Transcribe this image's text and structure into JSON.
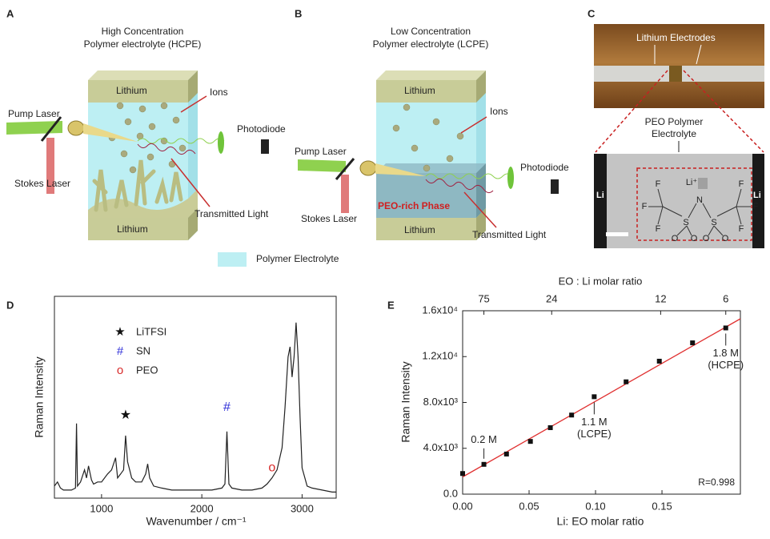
{
  "panels": {
    "A": {
      "label": "A",
      "title": [
        "High Concentration",
        "Polymer electrolyte (HCPE)"
      ],
      "top_electrode": "Lithium",
      "bottom_electrode": "Lithium",
      "ions": "Ions",
      "pump": "Pump Laser",
      "detector": "Photodiode",
      "stokes": "Stokes Laser",
      "transmitted": "Transmitted Light"
    },
    "B": {
      "label": "B",
      "title": [
        "Low Concentration",
        "Polymer electrolyte (LCPE)"
      ],
      "top_electrode": "Lithium",
      "bottom_electrode": "Lithium",
      "ions": "Ions",
      "pump": "Pump Laser",
      "detector": "Photodiode",
      "stokes": "Stokes Laser",
      "phase": "PEO-rich Phase",
      "transmitted": "Transmitted Light"
    },
    "C": {
      "label": "C",
      "electrodes": "Lithium Electrodes",
      "electrolyte": [
        "PEO Polymer",
        "Electrolyte"
      ],
      "left": "Li",
      "right": "Li",
      "atoms": [
        "F",
        "F",
        "F",
        "S",
        "O",
        "O",
        "N",
        "S",
        "O",
        "O",
        "F",
        "F",
        "F"
      ],
      "cation": "Li⁺"
    }
  },
  "legend": "Polymer Electrolyte",
  "chart_data": [
    {
      "type": "line",
      "label": "D",
      "xlabel": "Wavenumber / cm⁻¹",
      "ylabel": "Raman Intensity",
      "color": "#222222",
      "x": [
        530,
        560,
        590,
        620,
        660,
        700,
        740,
        750,
        760,
        790,
        830,
        850,
        870,
        900,
        920,
        960,
        1000,
        1060,
        1100,
        1140,
        1160,
        1190,
        1220,
        1240,
        1260,
        1280,
        1300,
        1340,
        1400,
        1440,
        1460,
        1480,
        1520,
        1600,
        1700,
        1800,
        1900,
        2000,
        2100,
        2200,
        2230,
        2250,
        2270,
        2300,
        2400,
        2500,
        2600,
        2650,
        2700,
        2750,
        2800,
        2830,
        2860,
        2880,
        2900,
        2920,
        2940,
        2960,
        2980,
        3000,
        3050,
        3100,
        3200,
        3300,
        3340
      ],
      "values": [
        6,
        8,
        5,
        4,
        4,
        4,
        5,
        37,
        6,
        8,
        14,
        10,
        16,
        9,
        7,
        8,
        8,
        12,
        14,
        20,
        10,
        12,
        14,
        31,
        18,
        14,
        10,
        8,
        8,
        12,
        17,
        10,
        6,
        5,
        4,
        4,
        4,
        4,
        4,
        5,
        7,
        33,
        7,
        5,
        4,
        4,
        5,
        7,
        10,
        14,
        25,
        45,
        70,
        75,
        60,
        70,
        87,
        70,
        40,
        15,
        6,
        5,
        4,
        3,
        3
      ],
      "xlim": [
        530,
        3340
      ],
      "xticks": [
        1000,
        2000,
        3000
      ],
      "ylim": [
        0,
        100
      ],
      "legend": [
        {
          "symbol": "★",
          "name": "LiTFSI",
          "color": "#111111"
        },
        {
          "symbol": "#",
          "name": "SN",
          "color": "#2f2fd8"
        },
        {
          "symbol": "o",
          "name": "PEO",
          "color": "#d82a2a"
        }
      ],
      "annotations": [
        {
          "text": "★",
          "x": 1240,
          "y": 41,
          "color": "#111111"
        },
        {
          "text": "#",
          "x": 2250,
          "y": 45,
          "color": "#2f2fd8"
        },
        {
          "text": "o",
          "x": 2700,
          "y": 15,
          "color": "#d82a2a"
        }
      ]
    },
    {
      "type": "scatter",
      "label": "E",
      "xlabel": "Li: EO molar ratio",
      "ylabel": "Raman Intensity",
      "x2label": "EO : Li molar ratio",
      "color": "#111111",
      "x": [
        0,
        0.016,
        0.033,
        0.051,
        0.066,
        0.082,
        0.099,
        0.123,
        0.148,
        0.173,
        0.198
      ],
      "values": [
        1800,
        2600,
        3500,
        4600,
        5800,
        6900,
        8500,
        9800,
        11600,
        13200,
        14500
      ],
      "fit": {
        "color": "#e03030",
        "x": [
          0,
          0.209
        ],
        "values": [
          1500,
          15300
        ]
      },
      "xlim": [
        0,
        0.209
      ],
      "xticks": [
        {
          "value": 0,
          "label": "0.00"
        },
        {
          "value": 0.05,
          "label": "0.05"
        },
        {
          "value": 0.1,
          "label": "0.10"
        },
        {
          "value": 0.15,
          "label": "0.15"
        }
      ],
      "x2ticks": [
        {
          "value": 0.016,
          "label": "75"
        },
        {
          "value": 0.067,
          "label": "24"
        },
        {
          "value": 0.149,
          "label": "12"
        },
        {
          "value": 0.198,
          "label": "6"
        }
      ],
      "ylim": [
        0,
        16000
      ],
      "yticks": [
        {
          "value": 0,
          "label": "0.0"
        },
        {
          "value": 4000,
          "label": "4.0x10³"
        },
        {
          "value": 8000,
          "label": "8.0x10³"
        },
        {
          "value": 12000,
          "label": "1.2x10⁴"
        },
        {
          "value": 16000,
          "label": "1.6x10⁴"
        }
      ],
      "annotations": [
        [
          "0.2 M"
        ],
        [
          "1.1 M",
          "(LCPE)"
        ],
        [
          "1.8 M",
          "(HCPE)"
        ]
      ],
      "note": "R=0.998"
    }
  ]
}
